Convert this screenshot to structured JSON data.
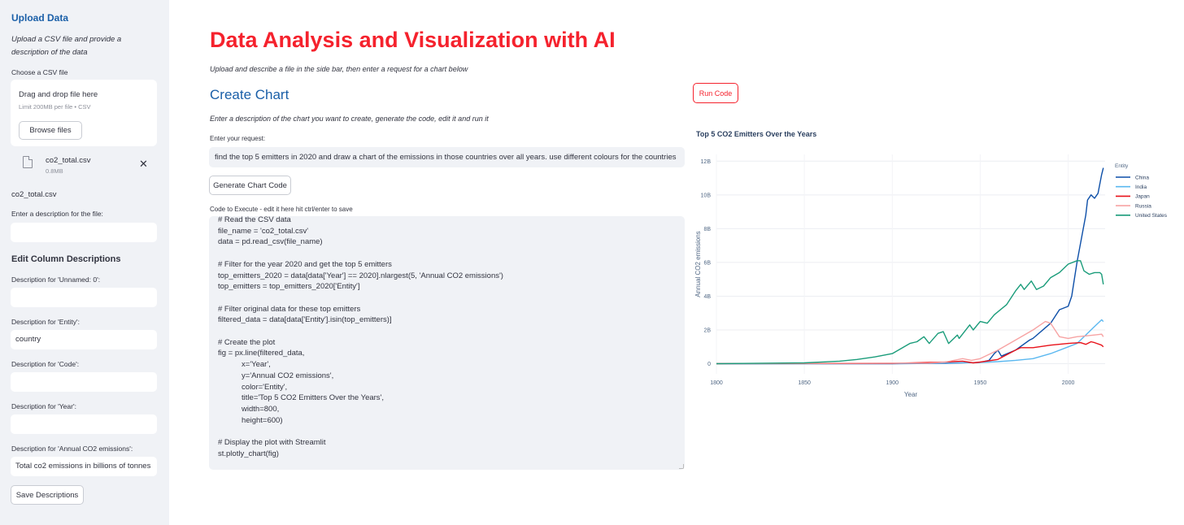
{
  "sidebar": {
    "heading": "Upload Data",
    "description": "Upload a CSV file and provide a description of the data",
    "choose_label": "Choose a CSV file",
    "dropzone_title": "Drag and drop file here",
    "dropzone_limit": "Limit 200MB per file • CSV",
    "browse_button": "Browse files",
    "file_name": "co2_total.csv",
    "file_size": "0.8MB",
    "file_close": "✕",
    "current_file": "co2_total.csv",
    "file_desc_label": "Enter a description for the file:",
    "file_desc_value": "",
    "columns_heading": "Edit Column Descriptions",
    "columns": [
      {
        "label": "Description for 'Unnamed: 0':",
        "value": ""
      },
      {
        "label": "Description for 'Entity':",
        "value": "country"
      },
      {
        "label": "Description for 'Code':",
        "value": ""
      },
      {
        "label": "Description for 'Year':",
        "value": ""
      },
      {
        "label": "Description for 'Annual CO2 emissions':",
        "value": "Total co2 emissions in billions of tonnes"
      }
    ],
    "save_button": "Save Descriptions"
  },
  "main": {
    "title": "Data Analysis and Visualization with AI",
    "subtitle": "Upload and describe a file in the side bar, then enter a request for a chart below",
    "create_heading": "Create Chart",
    "create_subtitle": "Enter a description of the chart you want to create, generate the code, edit it and run it",
    "request_label": "Enter your request:",
    "request_value": "find the top 5 emitters in 2020 and draw a chart of the emissions in those countries over all years. use different colours for the countries",
    "generate_button": "Generate Chart Code",
    "code_label": "Code to Execute - edit it here hit ctrl/enter to save",
    "code": "# Read the CSV data\nfile_name = 'co2_total.csv'\ndata = pd.read_csv(file_name)\n\n# Filter for the year 2020 and get the top 5 emitters\ntop_emitters_2020 = data[data['Year'] == 2020].nlargest(5, 'Annual CO2 emissions')\ntop_emitters = top_emitters_2020['Entity']\n\n# Filter original data for these top emitters\nfiltered_data = data[data['Entity'].isin(top_emitters)]\n\n# Create the plot\nfig = px.line(filtered_data,\n           x='Year',\n           y='Annual CO2 emissions',\n           color='Entity',\n           title='Top 5 CO2 Emitters Over the Years',\n           width=800,\n           height=600)\n\n# Display the plot with Streamlit\nst.plotly_chart(fig)",
    "run_button": "Run Code"
  },
  "chart_data": {
    "type": "line",
    "title": "Top 5 CO2 Emitters Over the Years",
    "xlabel": "Year",
    "ylabel": "Annual CO2 emissions",
    "xlim": [
      1800,
      2021
    ],
    "ylim": [
      -0.6,
      12.4
    ],
    "x_ticks": [
      1800,
      1850,
      1900,
      1950,
      2000
    ],
    "y_ticks": [
      0,
      2,
      4,
      6,
      8,
      10,
      12
    ],
    "y_tick_labels": [
      "0",
      "2B",
      "4B",
      "6B",
      "8B",
      "10B",
      "12B"
    ],
    "y_unit": "billions",
    "grid": true,
    "legend_title": "Entity",
    "legend_position": "top-right",
    "series": [
      {
        "name": "China",
        "color": "#0d4fa8",
        "x": [
          1800,
          1900,
          1930,
          1950,
          1955,
          1958,
          1960,
          1962,
          1970,
          1978,
          1980,
          1990,
          1995,
          2000,
          2002,
          2005,
          2010,
          2011,
          2013,
          2015,
          2017,
          2019,
          2020
        ],
        "y": [
          0,
          0,
          0.02,
          0.08,
          0.2,
          0.6,
          0.8,
          0.45,
          0.8,
          1.4,
          1.5,
          2.4,
          3.2,
          3.4,
          4.0,
          6.0,
          8.8,
          9.7,
          10.0,
          9.8,
          10.1,
          11.2,
          11.6
        ]
      },
      {
        "name": "India",
        "color": "#5bb8f0",
        "x": [
          1800,
          1900,
          1950,
          1960,
          1970,
          1980,
          1990,
          2000,
          2005,
          2010,
          2015,
          2019,
          2020
        ],
        "y": [
          0,
          0.01,
          0.07,
          0.12,
          0.2,
          0.3,
          0.6,
          1.0,
          1.2,
          1.7,
          2.2,
          2.6,
          2.5
        ]
      },
      {
        "name": "Japan",
        "color": "#e8121a",
        "x": [
          1800,
          1900,
          1930,
          1940,
          1946,
          1950,
          1960,
          1970,
          1973,
          1980,
          1990,
          2000,
          2007,
          2010,
          2013,
          2015,
          2019,
          2020
        ],
        "y": [
          0,
          0.02,
          0.1,
          0.15,
          0.05,
          0.1,
          0.25,
          0.8,
          0.95,
          0.95,
          1.1,
          1.2,
          1.25,
          1.15,
          1.3,
          1.25,
          1.1,
          1.0
        ]
      },
      {
        "name": "Russia",
        "color": "#f7a3a3",
        "x": [
          1800,
          1900,
          1920,
          1930,
          1940,
          1945,
          1950,
          1960,
          1970,
          1980,
          1987,
          1990,
          1995,
          2000,
          2005,
          2010,
          2015,
          2019,
          2020
        ],
        "y": [
          0,
          0.04,
          0.03,
          0.1,
          0.3,
          0.2,
          0.3,
          0.8,
          1.4,
          2.0,
          2.5,
          2.4,
          1.6,
          1.5,
          1.6,
          1.65,
          1.7,
          1.75,
          1.6
        ]
      },
      {
        "name": "United States",
        "color": "#1a9c7a",
        "x": [
          1800,
          1850,
          1870,
          1880,
          1890,
          1900,
          1910,
          1914,
          1918,
          1921,
          1926,
          1929,
          1932,
          1937,
          1938,
          1944,
          1946,
          1950,
          1954,
          1958,
          1965,
          1970,
          1973,
          1975,
          1979,
          1982,
          1986,
          1990,
          1995,
          2000,
          2005,
          2007,
          2009,
          2012,
          2015,
          2018,
          2019,
          2020
        ],
        "y": [
          0,
          0.05,
          0.15,
          0.25,
          0.4,
          0.6,
          1.2,
          1.3,
          1.6,
          1.2,
          1.8,
          1.9,
          1.2,
          1.7,
          1.5,
          2.3,
          2.0,
          2.5,
          2.4,
          2.9,
          3.5,
          4.3,
          4.7,
          4.4,
          4.9,
          4.4,
          4.6,
          5.1,
          5.4,
          5.9,
          6.1,
          6.1,
          5.5,
          5.3,
          5.4,
          5.4,
          5.3,
          4.7
        ]
      }
    ]
  }
}
